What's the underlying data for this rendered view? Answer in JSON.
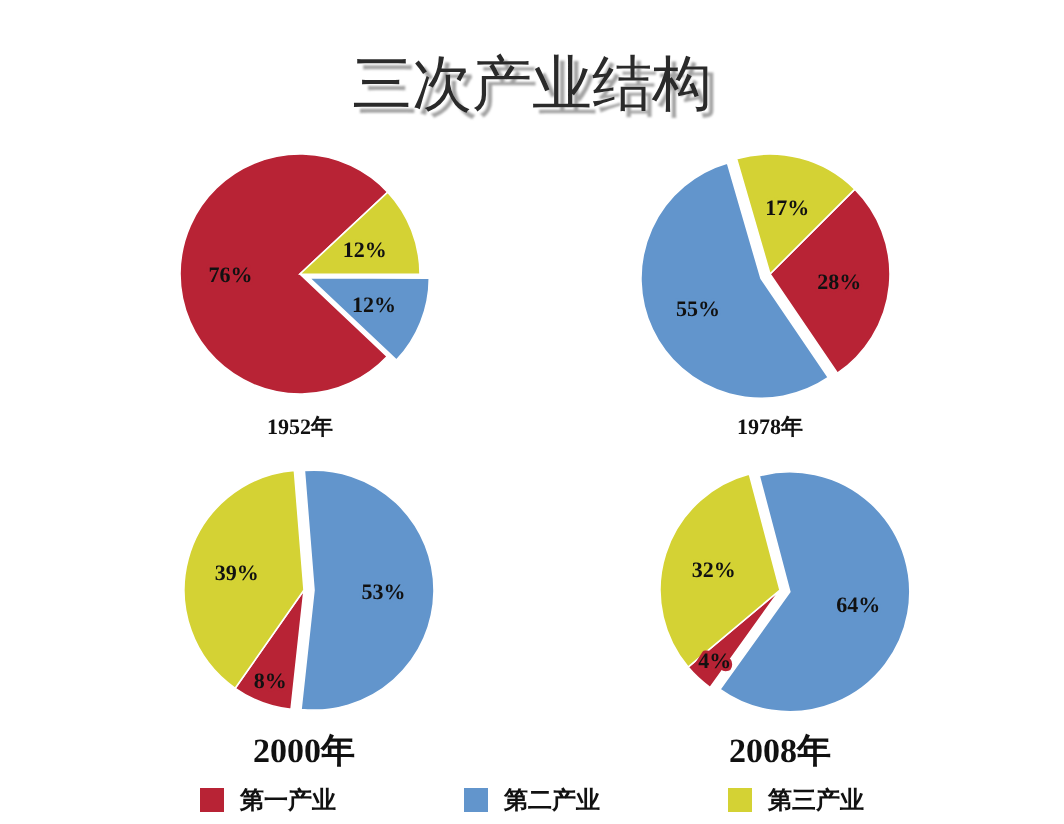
{
  "chart_data": {
    "type": "pie",
    "title": "三次产业结构",
    "categories": [
      "第一产业",
      "第二产业",
      "第三产业"
    ],
    "colors": [
      "#b82335",
      "#6295cc",
      "#d4d234"
    ],
    "series": [
      {
        "name": "1952年",
        "values": [
          76,
          12,
          12
        ],
        "value_labels": [
          "76%",
          "12%",
          "12%"
        ]
      },
      {
        "name": "1978年",
        "values": [
          28,
          55,
          17
        ],
        "value_labels": [
          "28%",
          "55%",
          "17%"
        ]
      },
      {
        "name": "2000年",
        "values": [
          8,
          53,
          39
        ],
        "value_labels": [
          "8%",
          "53%",
          "39%"
        ]
      },
      {
        "name": "2008年",
        "values": [
          4,
          64,
          32
        ],
        "value_labels": [
          "4%",
          "64%",
          "32%"
        ]
      }
    ],
    "legend": "bottom"
  }
}
